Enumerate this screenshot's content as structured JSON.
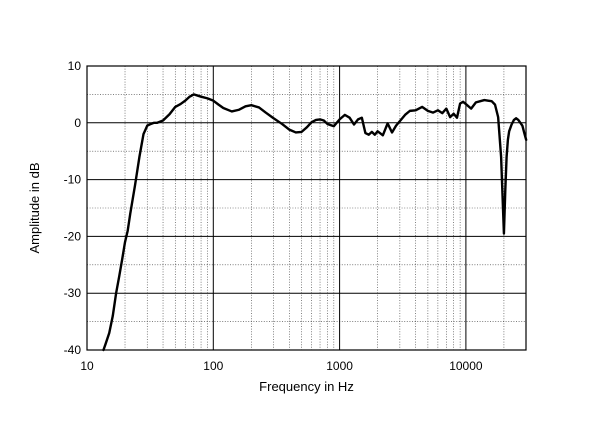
{
  "chart_data": {
    "type": "line",
    "xlabel": "Frequency in Hz",
    "ylabel": "Amplitude in dB",
    "xscale": "log",
    "xlim": [
      10,
      30000
    ],
    "ylim": [
      -40,
      10
    ],
    "grid": true,
    "x_ticks": [
      {
        "value": 10,
        "label": "10"
      },
      {
        "value": 100,
        "label": "100"
      },
      {
        "value": 1000,
        "label": "1000"
      },
      {
        "value": 10000,
        "label": "10000"
      }
    ],
    "y_ticks": [
      {
        "value": 10,
        "label": "10"
      },
      {
        "value": 0,
        "label": "0"
      },
      {
        "value": -10,
        "label": "-10"
      },
      {
        "value": -20,
        "label": "-20"
      },
      {
        "value": -30,
        "label": "-30"
      },
      {
        "value": -40,
        "label": "-40"
      }
    ],
    "series": [
      {
        "x": [
          13.5,
          14,
          15,
          16,
          17,
          18,
          19,
          20,
          21,
          22,
          24,
          26,
          28,
          30,
          32,
          34,
          36,
          40,
          45,
          50,
          55,
          60,
          65,
          70,
          75,
          80,
          90,
          100,
          110,
          120,
          140,
          160,
          180,
          200,
          230,
          260,
          300,
          350,
          400,
          450,
          500,
          550,
          600,
          650,
          700,
          750,
          800,
          900,
          1000,
          1100,
          1200,
          1300,
          1400,
          1500,
          1600,
          1700,
          1800,
          1900,
          2000,
          2200,
          2400,
          2600,
          2800,
          3000,
          3300,
          3600,
          4000,
          4500,
          5000,
          5500,
          6000,
          6500,
          7000,
          7500,
          8000,
          8500,
          9000,
          9500,
          10000,
          11000,
          12000,
          13000,
          14000,
          15000,
          16000,
          17000,
          18000,
          19000,
          20000,
          20500,
          21000,
          21500,
          22000,
          23000,
          24000,
          25000,
          26000,
          27000,
          28000,
          29000,
          30000
        ],
        "y": [
          -40,
          -39,
          -37,
          -34,
          -30,
          -27,
          -24,
          -21,
          -19,
          -16,
          -11,
          -6,
          -2,
          -0.5,
          -0.2,
          0,
          0,
          0.4,
          1.5,
          2.8,
          3.3,
          3.9,
          4.6,
          5,
          4.8,
          4.6,
          4.3,
          3.9,
          3.2,
          2.6,
          2,
          2.3,
          2.9,
          3.1,
          2.7,
          1.8,
          0.8,
          -0.2,
          -1.2,
          -1.7,
          -1.6,
          -0.8,
          0.1,
          0.5,
          0.6,
          0.4,
          -0.2,
          -0.6,
          0.6,
          1.4,
          0.9,
          -0.3,
          0.6,
          0.9,
          -1.8,
          -2.1,
          -1.6,
          -2.1,
          -1.5,
          -2.2,
          -0.1,
          -1.7,
          -0.5,
          0.3,
          1.4,
          2.1,
          2.2,
          2.8,
          2.1,
          1.8,
          2.2,
          1.7,
          2.5,
          1,
          1.6,
          0.9,
          3.4,
          3.7,
          3.3,
          2.5,
          3.6,
          3.8,
          4,
          3.9,
          3.8,
          3.2,
          1,
          -6,
          -19.5,
          -12,
          -6,
          -3,
          -1.5,
          -0.3,
          0.5,
          0.8,
          0.5,
          0,
          -0.5,
          -1.8,
          -3
        ]
      }
    ]
  }
}
